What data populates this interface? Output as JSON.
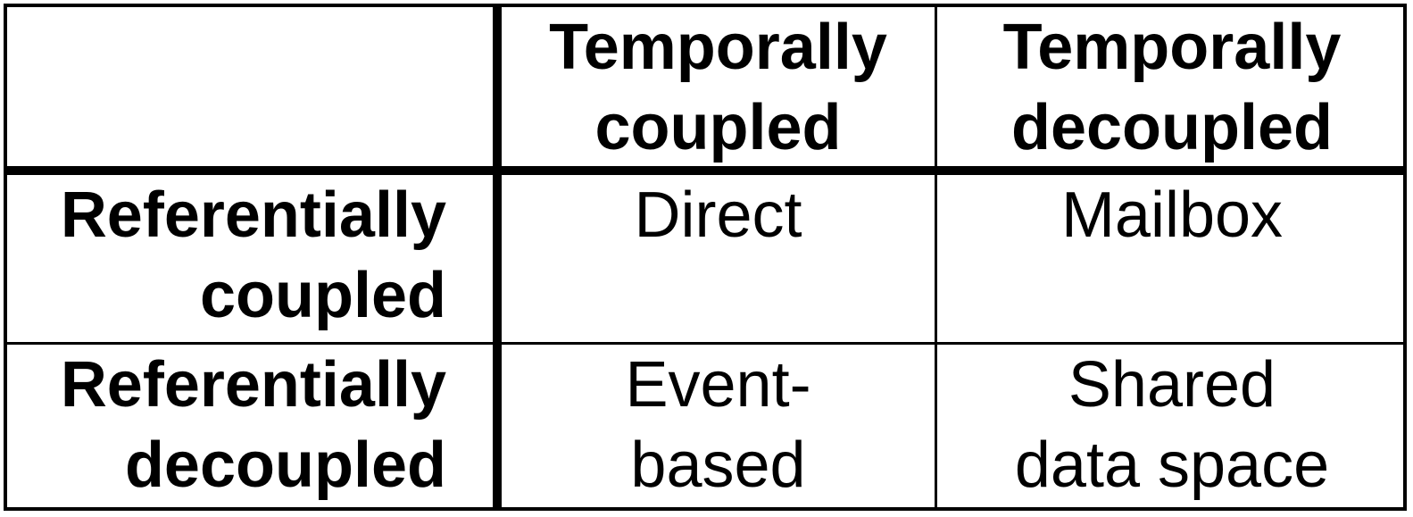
{
  "table": {
    "corner": "",
    "columns": [
      {
        "line1": "Temporally",
        "line2": "coupled"
      },
      {
        "line1": "Temporally",
        "line2": "decoupled"
      }
    ],
    "rows": [
      {
        "header": {
          "line1": "Referentially",
          "line2": "coupled"
        },
        "cells": [
          {
            "line1": "Direct",
            "line2": ""
          },
          {
            "line1": "Mailbox",
            "line2": ""
          }
        ]
      },
      {
        "header": {
          "line1": "Referentially",
          "line2": "decoupled"
        },
        "cells": [
          {
            "line1": "Event-",
            "line2": "based"
          },
          {
            "line1": "Shared",
            "line2": "data space"
          }
        ]
      }
    ]
  }
}
